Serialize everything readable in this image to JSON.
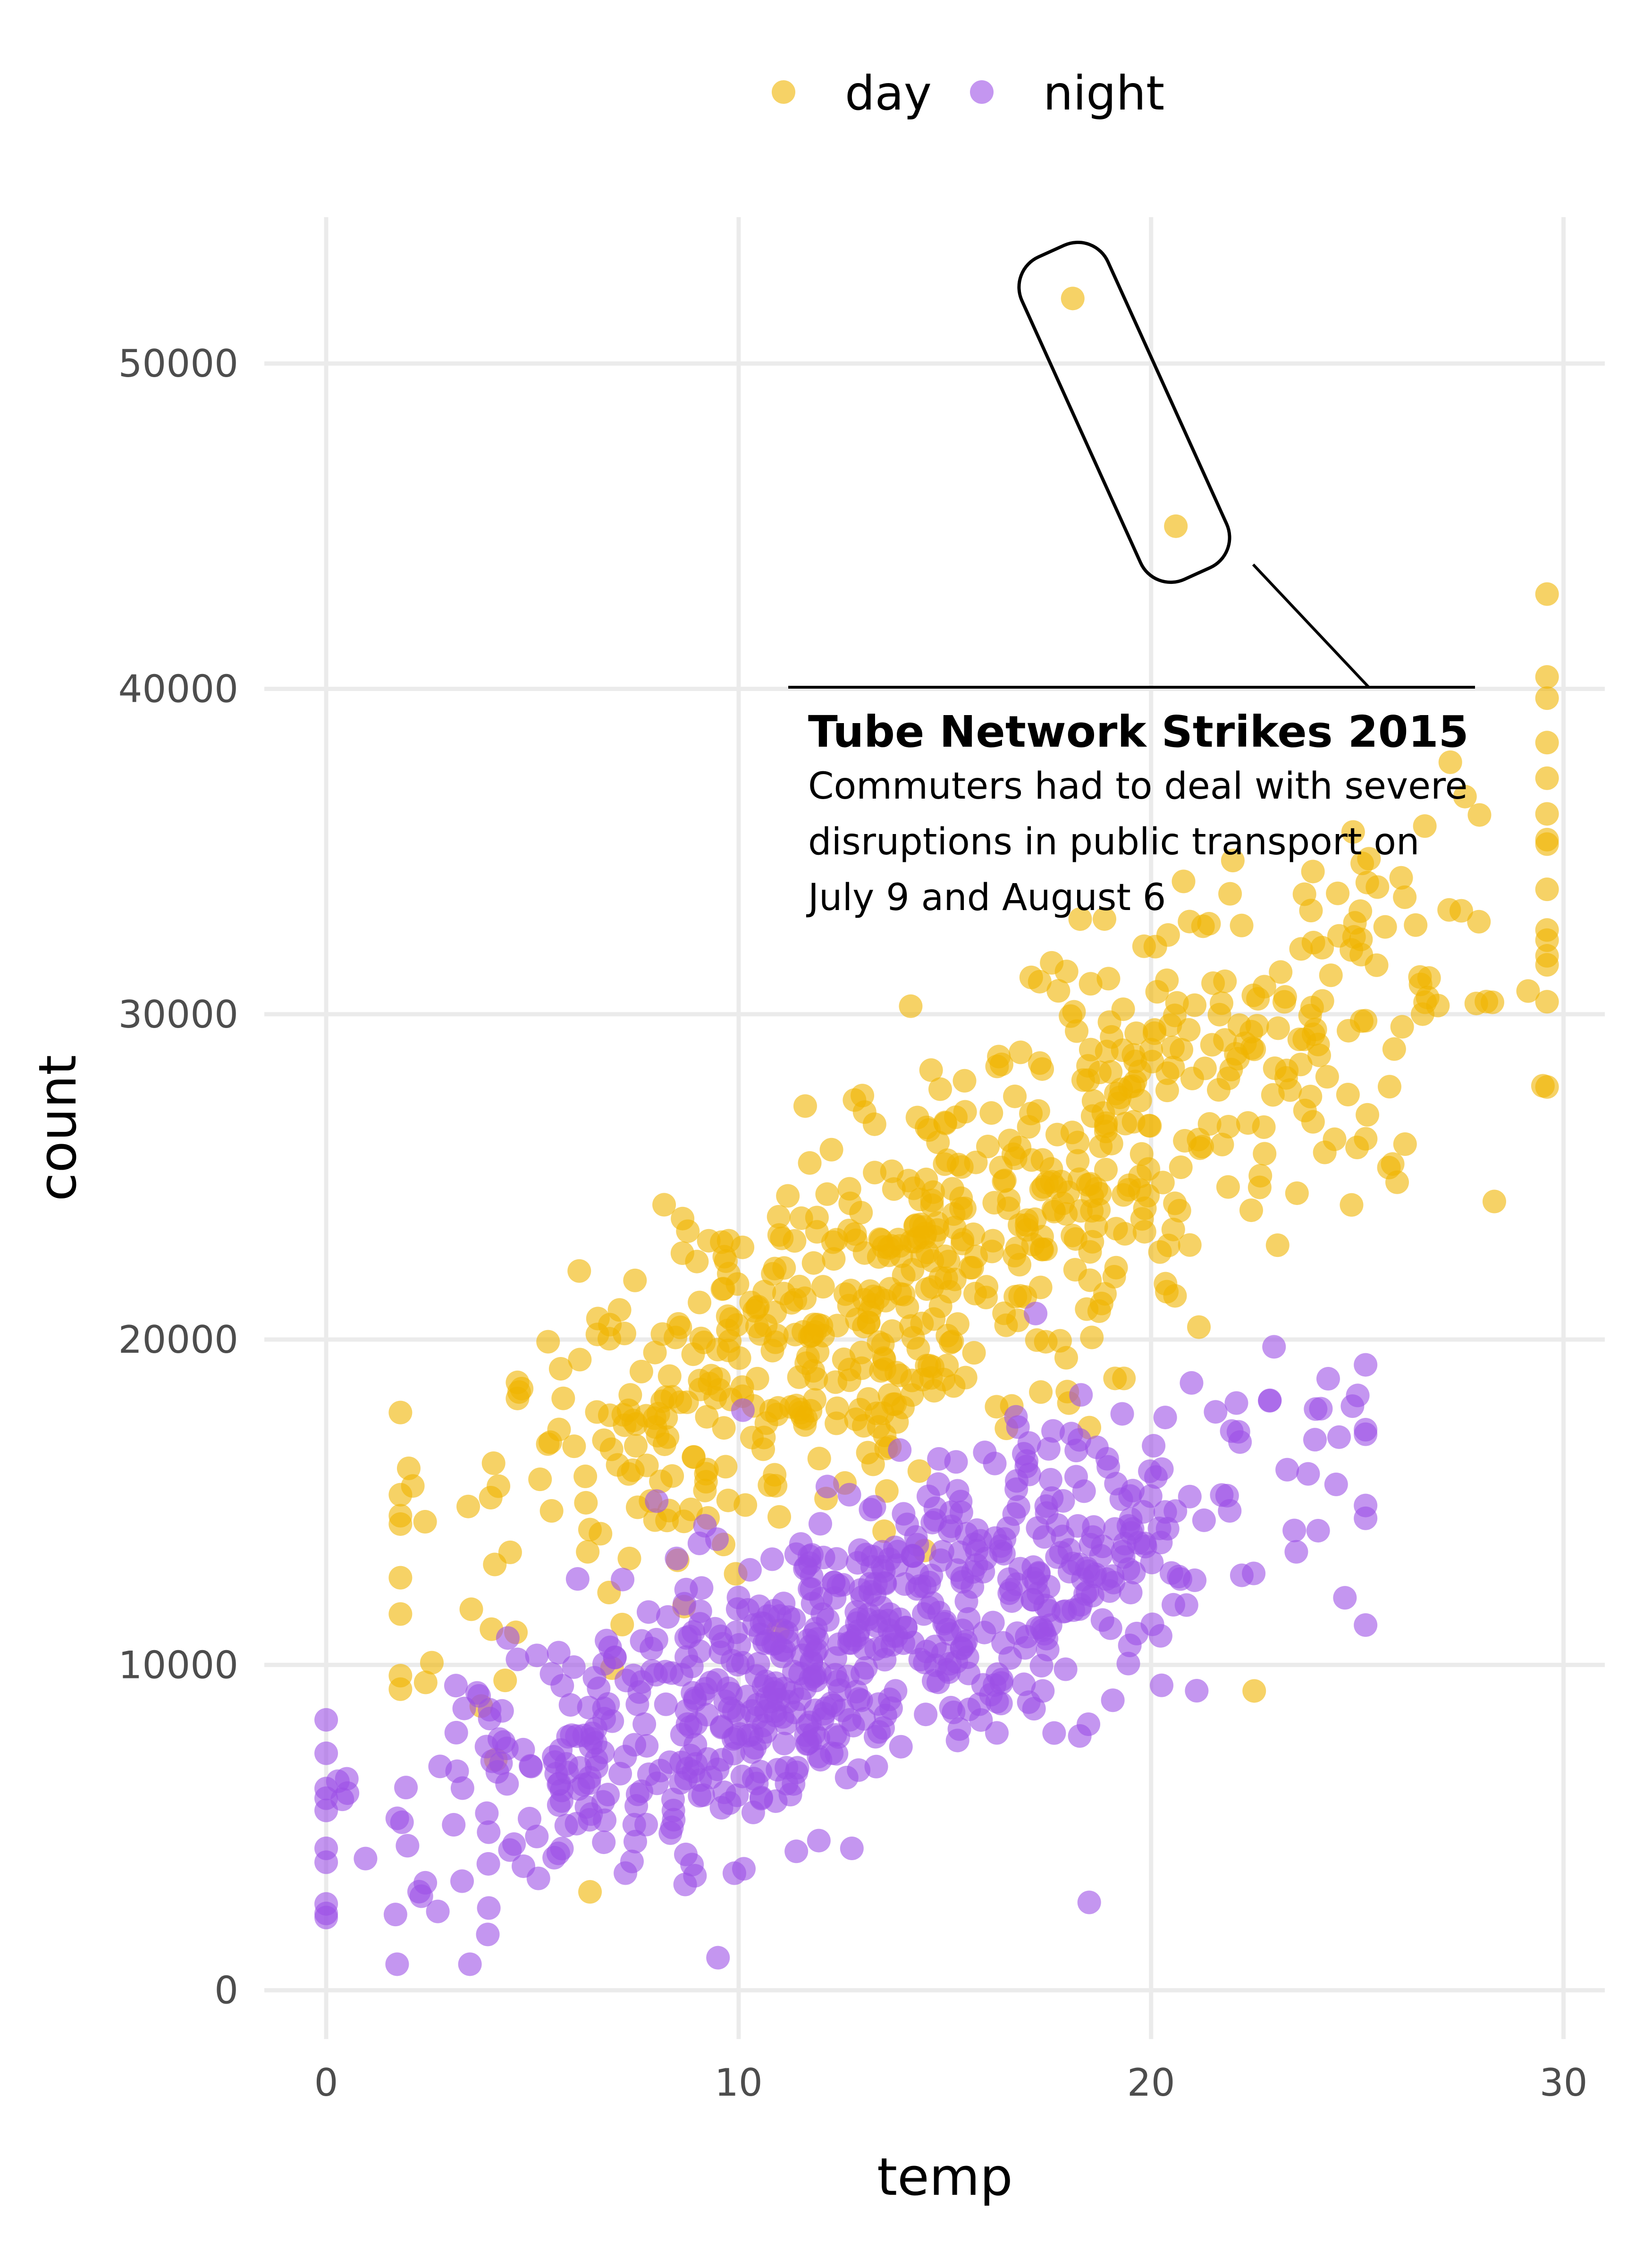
{
  "chart_data": {
    "type": "scatter",
    "xlabel": "temp",
    "ylabel": "count",
    "xlim": [
      -1.5,
      31.0
    ],
    "ylim": [
      -1500,
      54500
    ],
    "x_ticks": [
      0,
      10,
      20,
      30
    ],
    "y_ticks": [
      0,
      10000,
      20000,
      30000,
      40000,
      50000
    ],
    "x_tick_labels": [
      "0",
      "10",
      "20",
      "30"
    ],
    "y_tick_labels": [
      "0",
      "10000",
      "20000",
      "30000",
      "40000",
      "50000"
    ],
    "grid": true,
    "legend_position": "top-center",
    "legend": [
      {
        "name": "day",
        "color": "#f0b400"
      },
      {
        "name": "night",
        "color": "#9d50e6"
      }
    ],
    "series": [
      {
        "name": "day",
        "color": "#f0b400",
        "marker": "circle, semi-transparent",
        "generation": {
          "n": 730,
          "x_range": [
            1.8,
            29.6
          ],
          "trend": {
            "intercept": 10500,
            "slope": 800
          },
          "sd": 3000
        },
        "points": [
          [
            18.1,
            52000
          ],
          [
            20.6,
            45000
          ],
          [
            29.5,
            27800
          ],
          [
            22.5,
            9200
          ],
          [
            17.3,
            31000
          ],
          [
            25.2,
            29800
          ],
          [
            13.0,
            27500
          ],
          [
            2.1,
            15500
          ],
          [
            4.6,
            11000
          ]
        ]
      },
      {
        "name": "night",
        "color": "#9d50e6",
        "marker": "circle, semi-transparent",
        "generation": {
          "n": 730,
          "x_range": [
            0.0,
            25.2
          ],
          "trend": {
            "intercept": 4300,
            "slope": 480
          },
          "sd": 2300
        },
        "points": [
          [
            0.0,
            6200
          ],
          [
            0.5,
            6500
          ],
          [
            9.5,
            1000
          ],
          [
            18.5,
            2700
          ],
          [
            25.2,
            14900
          ],
          [
            23.3,
            16000
          ],
          [
            17.2,
            20800
          ],
          [
            18.3,
            18300
          ]
        ]
      }
    ],
    "annotation": {
      "title": "Tube Network Strikes 2015",
      "lines": [
        "Commuters had to deal with severe",
        "disruptions in public transport on",
        "July 9 and August 6"
      ],
      "highlighted_points": [
        [
          18.1,
          52000
        ],
        [
          20.6,
          45000
        ]
      ]
    }
  }
}
